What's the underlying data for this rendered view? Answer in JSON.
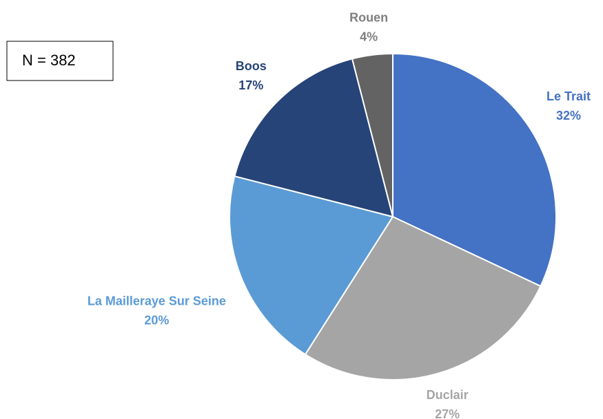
{
  "chart_data": {
    "type": "pie",
    "annotation": "N = 382",
    "categories": [
      "Le Trait",
      "Duclair",
      "La Mailleraye Sur Seine",
      "Boos",
      "Rouen"
    ],
    "values": [
      32,
      27,
      20,
      17,
      4
    ],
    "value_labels": [
      "32%",
      "27%",
      "20%",
      "17%",
      "4%"
    ],
    "colors": [
      "#4472c4",
      "#a5a5a5",
      "#5b9bd5",
      "#264478",
      "#636363"
    ],
    "label_colors": [
      "#4472c4",
      "#a5a5a5",
      "#5b9bd5",
      "#264478",
      "#7f7f7f"
    ]
  }
}
